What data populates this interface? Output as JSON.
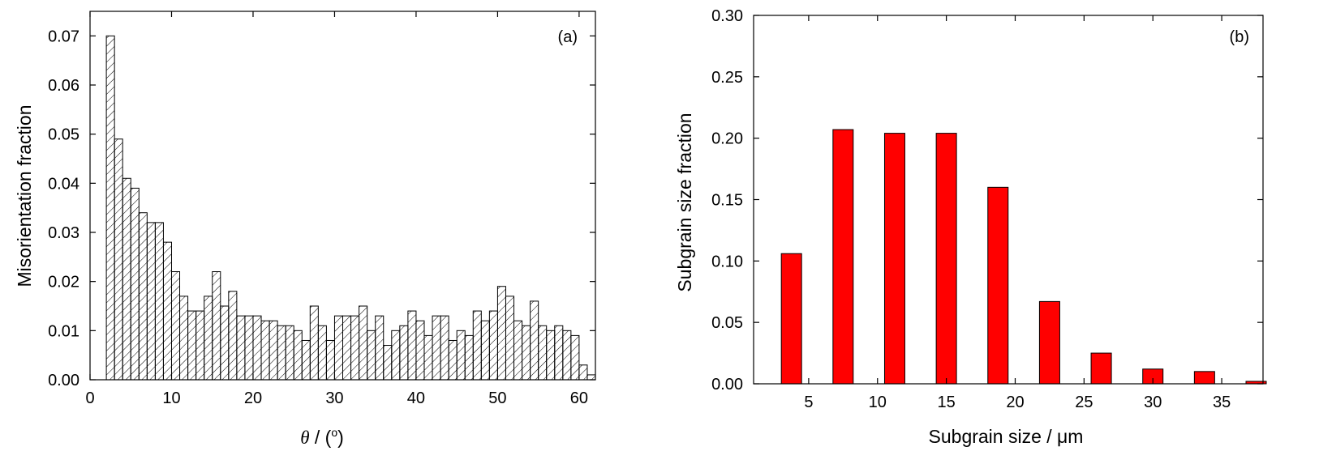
{
  "chart_data": [
    {
      "type": "bar",
      "panel_label": "(a)",
      "xlabel_symbol": "θ",
      "xlabel_rest": " / (",
      "xlabel_sup": "o",
      "xlabel_close": ")",
      "ylabel": "Misorientation fraction",
      "xlim": [
        0,
        62
      ],
      "ylim": [
        0,
        0.075
      ],
      "xticks": [
        0,
        10,
        20,
        30,
        40,
        50,
        60
      ],
      "yticks": [
        0.0,
        0.01,
        0.02,
        0.03,
        0.04,
        0.05,
        0.06,
        0.07
      ],
      "ytick_labels": [
        "0.00",
        "0.01",
        "0.02",
        "0.03",
        "0.04",
        "0.05",
        "0.06",
        "0.07"
      ],
      "bar_style": "hatched",
      "x": [
        2.5,
        3.5,
        4.5,
        5.5,
        6.5,
        7.5,
        8.5,
        9.5,
        10.5,
        11.5,
        12.5,
        13.5,
        14.5,
        15.5,
        16.5,
        17.5,
        18.5,
        19.5,
        20.5,
        21.5,
        22.5,
        23.5,
        24.5,
        25.5,
        26.5,
        27.5,
        28.5,
        29.5,
        30.5,
        31.5,
        32.5,
        33.5,
        34.5,
        35.5,
        36.5,
        37.5,
        38.5,
        39.5,
        40.5,
        41.5,
        42.5,
        43.5,
        44.5,
        45.5,
        46.5,
        47.5,
        48.5,
        49.5,
        50.5,
        51.5,
        52.5,
        53.5,
        54.5,
        55.5,
        56.5,
        57.5,
        58.5,
        59.5,
        60.5,
        61.5
      ],
      "values": [
        0.07,
        0.049,
        0.041,
        0.039,
        0.034,
        0.032,
        0.032,
        0.028,
        0.022,
        0.017,
        0.014,
        0.014,
        0.017,
        0.022,
        0.015,
        0.018,
        0.013,
        0.013,
        0.013,
        0.012,
        0.012,
        0.011,
        0.011,
        0.01,
        0.008,
        0.015,
        0.011,
        0.008,
        0.013,
        0.013,
        0.013,
        0.015,
        0.01,
        0.013,
        0.007,
        0.01,
        0.011,
        0.014,
        0.012,
        0.009,
        0.013,
        0.013,
        0.008,
        0.01,
        0.009,
        0.014,
        0.012,
        0.014,
        0.019,
        0.017,
        0.012,
        0.011,
        0.016,
        0.011,
        0.01,
        0.011,
        0.01,
        0.009,
        0.003,
        0.001
      ]
    },
    {
      "type": "bar",
      "panel_label": "(b)",
      "xlabel": "Subgrain size / μm",
      "ylabel": "Subgrain size fraction",
      "xlim": [
        1,
        38
      ],
      "ylim": [
        0,
        0.3
      ],
      "xticks": [
        5,
        10,
        15,
        20,
        25,
        30,
        35
      ],
      "yticks": [
        0.0,
        0.05,
        0.1,
        0.15,
        0.2,
        0.25,
        0.3
      ],
      "ytick_labels": [
        "0.00",
        "0.05",
        "0.10",
        "0.15",
        "0.20",
        "0.25",
        "0.30"
      ],
      "bar_color": "#ff0000",
      "x": [
        3.75,
        7.5,
        11.25,
        15.0,
        18.75,
        22.5,
        26.25,
        30.0,
        33.75,
        37.5
      ],
      "values": [
        0.106,
        0.207,
        0.204,
        0.204,
        0.16,
        0.067,
        0.025,
        0.012,
        0.01,
        0.002
      ]
    }
  ]
}
